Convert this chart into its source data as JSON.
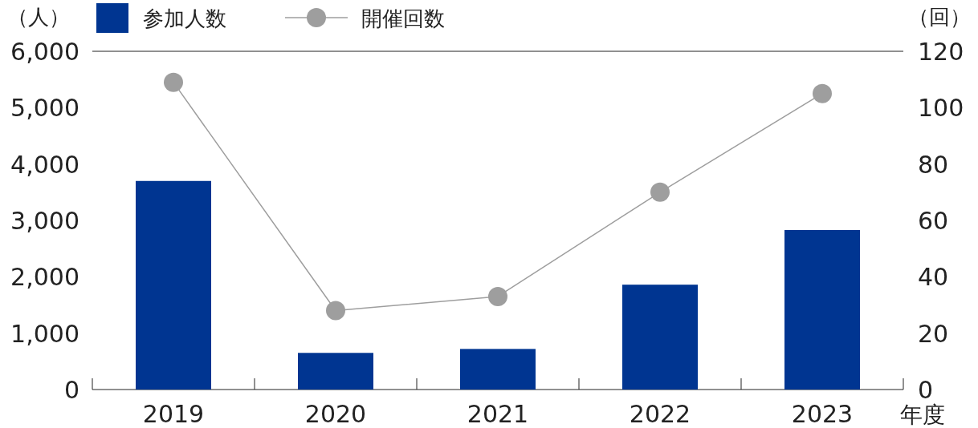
{
  "chart_data": {
    "type": "bar",
    "ylabel": "（人）",
    "y2label": "（回）",
    "xlabel": "年度",
    "categories": [
      "2019",
      "2020",
      "2021",
      "2022",
      "2023"
    ],
    "series": [
      {
        "name": "参加人数",
        "color": "#003591",
        "values": [
          3700,
          650,
          720,
          1860,
          2830
        ]
      },
      {
        "name": "開催回数",
        "type": "line",
        "axis": "y2",
        "color": "#9e9e9e",
        "marker": "circle",
        "values": [
          109,
          28,
          33,
          70,
          105
        ]
      }
    ],
    "ylim": [
      0,
      6000
    ],
    "yticks": [
      {
        "value": 0,
        "label": "0"
      },
      {
        "value": 1000,
        "label": "1,000"
      },
      {
        "value": 2000,
        "label": "2,000"
      },
      {
        "value": 3000,
        "label": "3,000"
      },
      {
        "value": 4000,
        "label": "4,000"
      },
      {
        "value": 5000,
        "label": "5,000"
      },
      {
        "value": 6000,
        "label": "6,000"
      }
    ],
    "y2lim": [
      0,
      120
    ],
    "y2ticks": [
      0,
      20,
      40,
      60,
      80,
      100,
      120
    ],
    "legend": "top left"
  }
}
